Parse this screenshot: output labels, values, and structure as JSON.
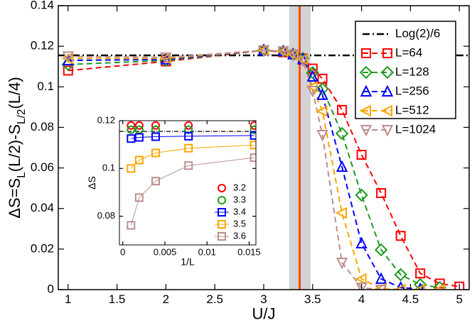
{
  "chart_data": [
    {
      "type": "line",
      "xlabel": "U/J",
      "ylabel": [
        "ΔS=S",
        "L",
        "(L/2)-S",
        "L/2",
        "(L/4)"
      ],
      "x": [
        1,
        2,
        3,
        3.2,
        3.3,
        3.4,
        3.5,
        3.6,
        3.8,
        4,
        4.2,
        4.4,
        4.6,
        4.8,
        5
      ],
      "xlim": [
        0.9,
        5.1
      ],
      "ylim": [
        0,
        0.14
      ],
      "xticks": [
        1,
        1.5,
        2,
        2.5,
        3,
        3.5,
        4,
        4.5,
        5
      ],
      "yticks": [
        0,
        0.02,
        0.04,
        0.06,
        0.08,
        0.1,
        0.12,
        0.14
      ],
      "grid": false,
      "legend": "upper right",
      "hlines": [
        {
          "name": "Log(2)/6",
          "value": 0.1155,
          "color": "#000000"
        }
      ],
      "band": [
        3.26,
        3.48
      ],
      "band_color": "#d3d3d3",
      "vlines": [
        {
          "value": 3.36,
          "color": "#ff8c00"
        },
        {
          "value": 3.37,
          "color": "#ff0000"
        }
      ],
      "series": [
        {
          "name": "L=64",
          "color": "#ff0000",
          "marker": "square",
          "linestyle": "dashed",
          "values": [
            0.108,
            0.1125,
            0.118,
            0.117,
            0.116,
            0.114,
            0.109,
            0.104,
            0.0886,
            0.0665,
            0.0476,
            0.0265,
            0.008,
            0.003,
            0.0015
          ]
        },
        {
          "name": "L=128",
          "color": "#1f9a1f",
          "marker": "diamond",
          "linestyle": "dashed",
          "values": [
            0.111,
            0.113,
            0.118,
            0.1175,
            0.116,
            0.114,
            0.107,
            0.099,
            0.077,
            0.0466,
            0.0196,
            0.0074,
            0.0025,
            0.001,
            null
          ]
        },
        {
          "name": "L=256",
          "color": "#0000ff",
          "marker": "triangle-up",
          "linestyle": "dashed",
          "values": [
            0.113,
            0.1135,
            0.118,
            0.1175,
            0.116,
            0.1135,
            0.105,
            0.096,
            0.0605,
            0.0228,
            0.0053,
            0.001,
            0.0003,
            null,
            null
          ]
        },
        {
          "name": "L=512",
          "color": "#ffa500",
          "marker": "triangle-left",
          "linestyle": "dashed",
          "values": [
            0.114,
            0.114,
            0.118,
            0.1175,
            0.116,
            0.1135,
            0.1,
            0.088,
            0.0378,
            0.0053,
            0.0004,
            0.0001,
            0.0,
            0.0,
            null
          ]
        },
        {
          "name": "L=1024",
          "color": "#bc8f8f",
          "marker": "triangle-down",
          "linestyle": "dashed",
          "values": [
            0.115,
            0.1145,
            0.118,
            0.1175,
            0.116,
            0.113,
            0.098,
            0.0763,
            0.0133,
            0.001,
            0.0,
            null,
            null,
            null,
            null
          ]
        }
      ]
    },
    {
      "type": "line",
      "xlabel": "1/L",
      "ylabel": [
        "ΔS"
      ],
      "x": [
        0.000977,
        0.00195,
        0.0039,
        0.0078,
        0.0156
      ],
      "xlim": [
        -0.0004,
        0.0158
      ],
      "ylim": [
        0.068,
        0.12
      ],
      "xticks": [
        0,
        0.005,
        0.01,
        0.015
      ],
      "yticks": [
        0.08,
        0.1,
        0.12
      ],
      "grid": false,
      "legend": "lower right",
      "hlines": [
        {
          "value": 0.1155,
          "color": "#000000"
        }
      ],
      "series": [
        {
          "name": "3.2",
          "color": "#ff0000",
          "marker": "circle",
          "linestyle": "none",
          "values": [
            0.118,
            0.118,
            0.118,
            0.118,
            0.118
          ]
        },
        {
          "name": "3.3",
          "color": "#1f9a1f",
          "marker": "circle",
          "linestyle": "none",
          "values": [
            0.1162,
            0.1162,
            0.1162,
            0.1162,
            0.1162
          ]
        },
        {
          "name": "3.4",
          "color": "#0000ff",
          "marker": "square",
          "linestyle": "solid",
          "values": [
            0.1125,
            0.113,
            0.1133,
            0.1135,
            0.1138
          ]
        },
        {
          "name": "3.5",
          "color": "#ffa500",
          "marker": "square",
          "linestyle": "solid",
          "values": [
            0.1,
            0.1035,
            0.1065,
            0.1085,
            0.1098
          ]
        },
        {
          "name": "3.6",
          "color": "#bc8f8f",
          "marker": "square",
          "linestyle": "solid",
          "values": [
            0.0762,
            0.0878,
            0.0947,
            0.1012,
            0.1045
          ]
        }
      ]
    }
  ]
}
